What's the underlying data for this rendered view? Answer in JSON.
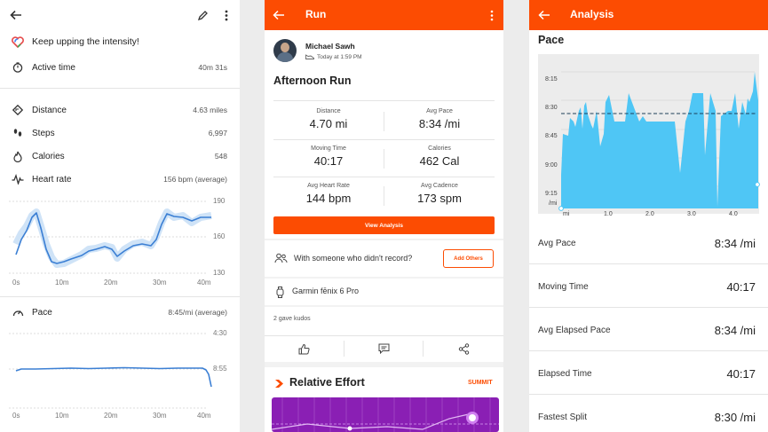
{
  "fit": {
    "motivation": "Keep upping the intensity!",
    "active_time": {
      "label": "Active time",
      "value": "40m 31s"
    },
    "distance": {
      "label": "Distance",
      "value": "4.63 miles"
    },
    "steps": {
      "label": "Steps",
      "value": "6,997"
    },
    "calories": {
      "label": "Calories",
      "value": "548"
    },
    "heart_rate": {
      "label": "Heart rate",
      "value": "156 bpm (average)"
    },
    "hr_axis": [
      "190",
      "160",
      "130"
    ],
    "time_axis": [
      "0s",
      "10m",
      "20m",
      "30m",
      "40m"
    ],
    "pace": {
      "label": "Pace",
      "value": "8:45/mi (average)"
    },
    "pace_axis": [
      "4:30",
      "8:55"
    ],
    "colors": {
      "line": "#3b7fd4",
      "band": "#cfe3f7",
      "heart_icon": "#e64a4a"
    }
  },
  "strava": {
    "title": "Run",
    "athlete": "Michael Sawh",
    "time": "Today at 1:59 PM",
    "activity_title": "Afternoon Run",
    "stats": [
      {
        "label": "Distance",
        "value": "4.70 mi"
      },
      {
        "label": "Avg Pace",
        "value": "8:34 /mi"
      },
      {
        "label": "Moving Time",
        "value": "40:17"
      },
      {
        "label": "Calories",
        "value": "462 Cal"
      },
      {
        "label": "Avg Heart Rate",
        "value": "144 bpm"
      },
      {
        "label": "Avg Cadence",
        "value": "173 spm"
      }
    ],
    "view_analysis": "View Analysis",
    "someone_text": "With someone who didn't record?",
    "add_others": "Add Others",
    "device": "Garmin fēnix 6 Pro",
    "kudos": "2 gave kudos",
    "relative_effort": "Relative Effort",
    "summit": "SUMMIT",
    "colors": {
      "brand": "#fc4c02",
      "effort": "#8a1fb4"
    }
  },
  "analysis": {
    "title": "Analysis",
    "section": "Pace",
    "chart_data": {
      "type": "area",
      "title": "Pace",
      "ylabel": "/mi",
      "xlabel": "mi",
      "x_ticks": [
        "1.0",
        "2.0",
        "3.0",
        "4.0"
      ],
      "y_ticks": [
        "8:15",
        "8:30",
        "8:45",
        "9:00",
        "9:15"
      ],
      "average_pace": "8:34",
      "color": "#4fc6f5"
    },
    "rows": [
      {
        "label": "Avg Pace",
        "value": "8:34 /mi"
      },
      {
        "label": "Moving Time",
        "value": "40:17"
      },
      {
        "label": "Avg Elapsed Pace",
        "value": "8:34 /mi"
      },
      {
        "label": "Elapsed Time",
        "value": "40:17"
      },
      {
        "label": "Fastest Split",
        "value": "8:30 /mi"
      }
    ]
  }
}
